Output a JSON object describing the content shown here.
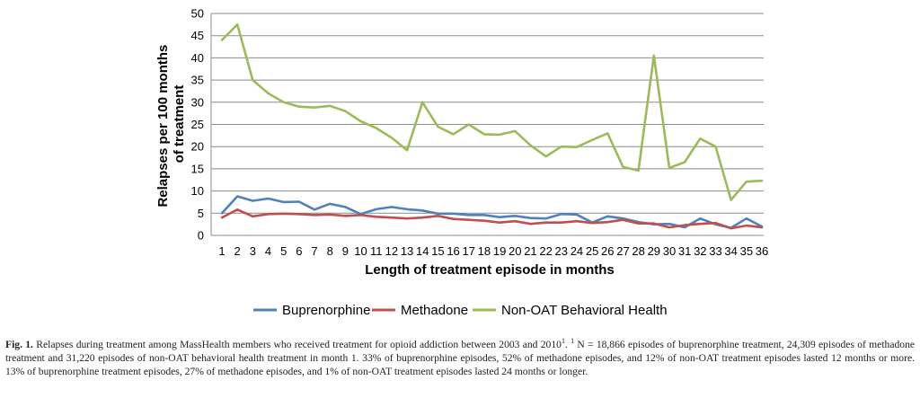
{
  "chart_data": {
    "type": "line",
    "title": "",
    "xlabel": "Length of treatment episode in months",
    "ylabel_lines": [
      "Relapses per 100 months",
      "of treatment"
    ],
    "x": [
      1,
      2,
      3,
      4,
      5,
      6,
      7,
      8,
      9,
      10,
      11,
      12,
      13,
      14,
      15,
      16,
      17,
      18,
      19,
      20,
      21,
      22,
      23,
      24,
      25,
      26,
      27,
      28,
      29,
      30,
      31,
      32,
      33,
      34,
      35,
      36
    ],
    "xlim": [
      1,
      36
    ],
    "ylim": [
      0,
      50
    ],
    "yticks": [
      0,
      5,
      10,
      15,
      20,
      25,
      30,
      35,
      40,
      45,
      50
    ],
    "grid": "horizontal",
    "legend_position": "bottom",
    "series": [
      {
        "name": "Buprenorphine",
        "color": "#4f81bd",
        "values": [
          5.0,
          8.8,
          7.8,
          8.3,
          7.5,
          7.6,
          5.8,
          7.1,
          6.4,
          4.8,
          5.9,
          6.4,
          5.9,
          5.6,
          4.9,
          4.9,
          4.6,
          4.6,
          4.1,
          4.4,
          3.9,
          3.8,
          4.8,
          4.7,
          2.9,
          4.3,
          3.8,
          3.0,
          2.5,
          2.6,
          1.8,
          3.8,
          2.5,
          1.7,
          3.8,
          2.0
        ]
      },
      {
        "name": "Methadone",
        "color": "#c0504d",
        "values": [
          4.0,
          5.8,
          4.3,
          4.8,
          4.9,
          4.8,
          4.6,
          4.7,
          4.4,
          4.6,
          4.2,
          4.0,
          3.8,
          4.0,
          4.4,
          3.7,
          3.5,
          3.3,
          2.9,
          3.2,
          2.6,
          2.9,
          2.9,
          3.2,
          2.8,
          3.0,
          3.5,
          2.7,
          2.7,
          1.8,
          2.3,
          2.6,
          2.8,
          1.6,
          2.2,
          1.8
        ]
      },
      {
        "name": "Non-OAT Behavioral Health",
        "color": "#9bbb59",
        "values": [
          44.0,
          47.5,
          35.0,
          32.0,
          30.0,
          29.0,
          28.8,
          29.2,
          28.0,
          25.7,
          24.2,
          22.0,
          19.2,
          30.0,
          24.5,
          22.8,
          25.0,
          22.8,
          22.7,
          23.5,
          20.3,
          17.8,
          20.0,
          19.9,
          21.5,
          23.0,
          15.4,
          14.6,
          40.5,
          15.2,
          16.5,
          21.8,
          20.0,
          8.0,
          12.1,
          12.3
        ]
      }
    ]
  },
  "caption": {
    "label": "Fig. 1.",
    "text1": "Relapses during treatment among MassHealth members who received treatment for opioid addiction between 2003 and 2010",
    "sup1": "1",
    "text2": ". ",
    "sup2": "1",
    "text3": "N = 18,866 episodes of buprenorphine treatment, 24,309 episodes of methadone treatment and 31,220 episodes of non-OAT behavioral health treatment in month 1. 33% of buprenorphine episodes, 52% of methadone episodes, and 12% of non-OAT treatment episodes lasted 12 months or more. 13% of buprenorphine treatment episodes, 27% of methadone episodes, and 1% of non-OAT treatment episodes lasted 24 months or longer."
  }
}
